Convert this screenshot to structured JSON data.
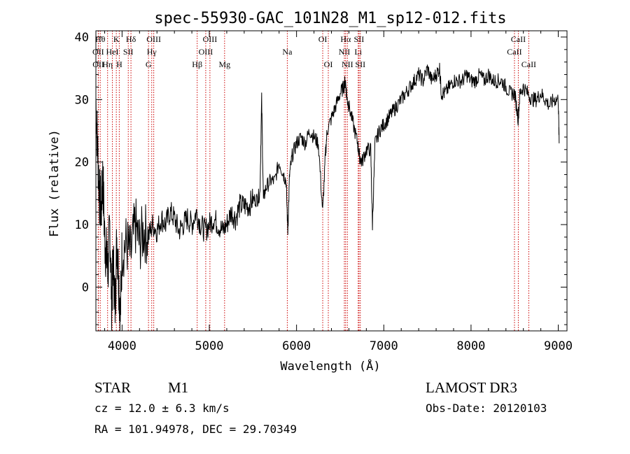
{
  "chart_data": {
    "type": "line",
    "title": "spec-55930-GAC_101N28_M1_sp12-012.fits",
    "xlabel": "Wavelength (Å)",
    "ylabel": "Flux (relative)",
    "xlim": [
      3700,
      9100
    ],
    "ylim": [
      -7,
      41
    ],
    "xticks": [
      4000,
      5000,
      6000,
      7000,
      8000,
      9000
    ],
    "yticks": [
      0,
      10,
      20,
      30,
      40
    ],
    "series": [
      {
        "name": "spectrum",
        "x": [
          3700,
          3720,
          3740,
          3760,
          3780,
          3800,
          3820,
          3840,
          3860,
          3880,
          3900,
          3920,
          3940,
          3960,
          3980,
          4000,
          4050,
          4100,
          4150,
          4200,
          4250,
          4300,
          4350,
          4400,
          4450,
          4500,
          4550,
          4600,
          4650,
          4700,
          4750,
          4800,
          4850,
          4900,
          4950,
          5000,
          5050,
          5100,
          5150,
          5200,
          5250,
          5300,
          5350,
          5400,
          5450,
          5500,
          5550,
          5580,
          5600,
          5620,
          5650,
          5700,
          5750,
          5800,
          5850,
          5880,
          5900,
          5920,
          5950,
          6000,
          6050,
          6100,
          6150,
          6200,
          6250,
          6300,
          6330,
          6350,
          6400,
          6450,
          6500,
          6540,
          6560,
          6580,
          6600,
          6650,
          6700,
          6720,
          6750,
          6800,
          6850,
          6870,
          6900,
          6950,
          7000,
          7050,
          7100,
          7150,
          7200,
          7250,
          7300,
          7350,
          7400,
          7450,
          7500,
          7550,
          7600,
          7640,
          7660,
          7700,
          7750,
          7800,
          7850,
          7900,
          7950,
          8000,
          8050,
          8100,
          8150,
          8200,
          8250,
          8300,
          8350,
          8400,
          8450,
          8500,
          8540,
          8560,
          8600,
          8650,
          8700,
          8750,
          8800,
          8850,
          8900,
          8950,
          9000,
          9010
        ],
        "y": [
          30,
          22,
          15,
          12,
          18,
          8,
          5,
          3,
          10,
          -2,
          4,
          -3,
          8,
          2,
          -5,
          6,
          7,
          5,
          10,
          7,
          9,
          8,
          10,
          9,
          11,
          10,
          12,
          11,
          9,
          10,
          11,
          10,
          12,
          10,
          9,
          10,
          11,
          10,
          9,
          10,
          12,
          11,
          13,
          13,
          13,
          14,
          14,
          15,
          30,
          14,
          16,
          17,
          17,
          20,
          18,
          17,
          9,
          18,
          21,
          23,
          24,
          23,
          25,
          24,
          23,
          12,
          21,
          25,
          27,
          29,
          31,
          32,
          33,
          30,
          29,
          26,
          23,
          21,
          20,
          22,
          22,
          10,
          23,
          25,
          26,
          27,
          28,
          29,
          30,
          31,
          32,
          33,
          34,
          33,
          35,
          33,
          34,
          35,
          31,
          31,
          32,
          33,
          33,
          33,
          34,
          33,
          33,
          34,
          33,
          34,
          33,
          33,
          33,
          32,
          31,
          31,
          27,
          31,
          32,
          31,
          30,
          30,
          31,
          30,
          29,
          30,
          30,
          23
        ],
        "color": "#000000"
      }
    ],
    "emission_lines": [
      {
        "wl": 3750,
        "label": "Hθ",
        "row": 0
      },
      {
        "wl": 3727,
        "label": "OII",
        "row": 1
      },
      {
        "wl": 3729,
        "label": "OII",
        "row": 2
      },
      {
        "wl": 3834,
        "label": "Hη",
        "row": 2
      },
      {
        "wl": 3889,
        "label": "HeI",
        "row": 1
      },
      {
        "wl": 3934,
        "label": "K",
        "row": 0
      },
      {
        "wl": 3968,
        "label": "H",
        "row": 2
      },
      {
        "wl": 4071,
        "label": "SII",
        "row": 1
      },
      {
        "wl": 4102,
        "label": "Hδ",
        "row": 0
      },
      {
        "wl": 4303,
        "label": "G",
        "row": 2
      },
      {
        "wl": 4340,
        "label": "Hγ",
        "row": 1
      },
      {
        "wl": 4363,
        "label": "OIII",
        "row": 0
      },
      {
        "wl": 4861,
        "label": "Hβ",
        "row": 2
      },
      {
        "wl": 4959,
        "label": "OIII",
        "row": 1
      },
      {
        "wl": 5007,
        "label": "OIII",
        "row": 0
      },
      {
        "wl": 5175,
        "label": "Mg",
        "row": 2
      },
      {
        "wl": 5894,
        "label": "Na",
        "row": 1
      },
      {
        "wl": 6300,
        "label": "OI",
        "row": 0
      },
      {
        "wl": 6364,
        "label": "OI",
        "row": 2
      },
      {
        "wl": 6548,
        "label": "NII",
        "row": 1
      },
      {
        "wl": 6563,
        "label": "Hα",
        "row": 0
      },
      {
        "wl": 6583,
        "label": "NII",
        "row": 2
      },
      {
        "wl": 6707,
        "label": "Li",
        "row": 1
      },
      {
        "wl": 6716,
        "label": "SII",
        "row": 0
      },
      {
        "wl": 6731,
        "label": "SII",
        "row": 2
      },
      {
        "wl": 8498,
        "label": "CaII",
        "row": 1
      },
      {
        "wl": 8542,
        "label": "CaII",
        "row": 0
      },
      {
        "wl": 8662,
        "label": "CaII",
        "row": 2
      }
    ]
  },
  "info": {
    "object_class": "STAR",
    "subclass": "M1",
    "survey": "LAMOST DR3",
    "cz": "cz = 12.0 ± 6.3 km/s",
    "obs_date": "Obs-Date: 20120103",
    "coords": "RA = 101.94978, DEC =  29.70349"
  },
  "colors": {
    "line_marker": "#cc0000",
    "spectrum": "#000000"
  }
}
